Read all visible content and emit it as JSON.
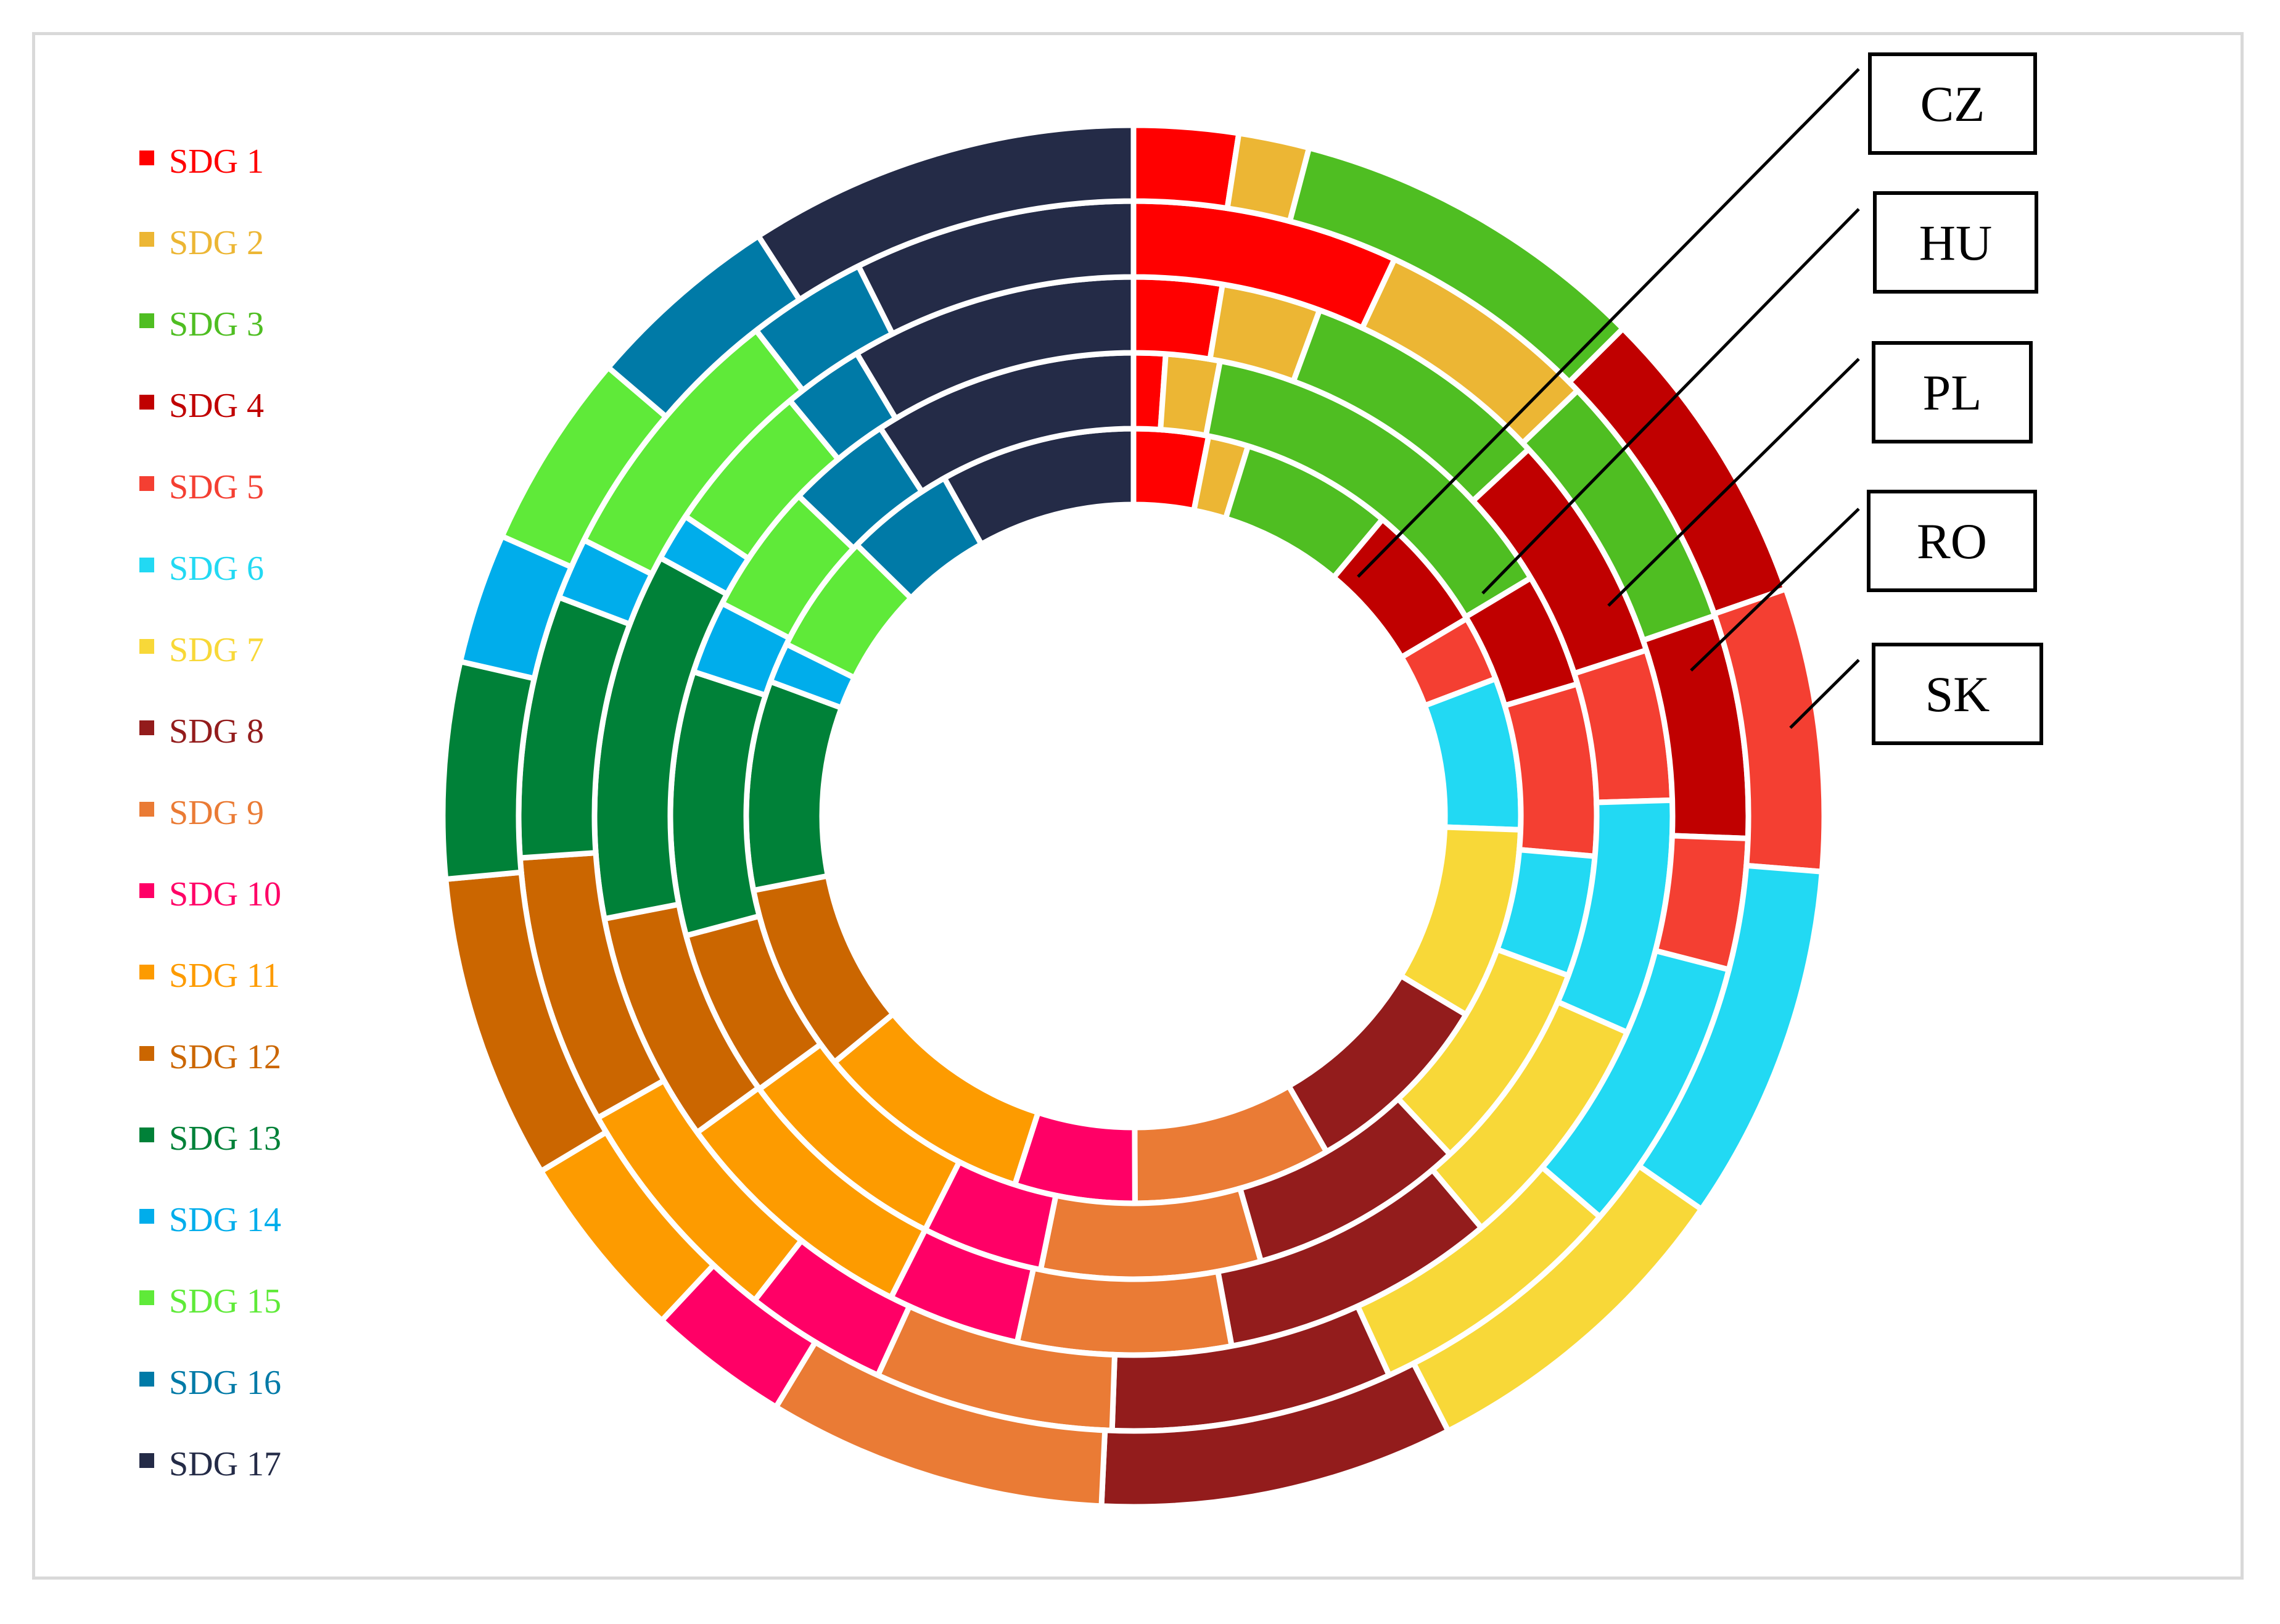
{
  "chart_data": {
    "type": "donut",
    "title": "",
    "legend_position": "left",
    "categories": [
      "SDG 1",
      "SDG 2",
      "SDG 3",
      "SDG 4",
      "SDG 5",
      "SDG 6",
      "SDG 7",
      "SDG 8",
      "SDG 9",
      "SDG 10",
      "SDG 11",
      "SDG 12",
      "SDG 13",
      "SDG 14",
      "SDG 15",
      "SDG 16",
      "SDG 17"
    ],
    "colors": [
      "#ff0000",
      "#ecb634",
      "#4fbe22",
      "#c00000",
      "#f43f32",
      "#22d9f3",
      "#f8d838",
      "#931c1c",
      "#ea7b35",
      "#ff0066",
      "#fd9b00",
      "#cb6600",
      "#008138",
      "#00adeb",
      "#5fea39",
      "#007aa7",
      "#242b47"
    ],
    "series": [
      {
        "name": "CZ",
        "values": [
          2.6,
          1.4,
          5.3,
          4.5,
          2.3,
          5.3,
          6.7,
          6.8,
          6.9,
          4.2,
          7.6,
          6.6,
          7.3,
          1.4,
          4.2,
          3.8,
          6.8
        ]
      },
      {
        "name": "HU",
        "values": [
          1.0,
          1.7,
          12.1,
          3.6,
          5.4,
          3.8,
          6.7,
          6.8,
          6.9,
          3.8,
          6.8,
          5.3,
          8.3,
          2.3,
          4.1,
          3.3,
          8.3
        ]
      },
      {
        "name": "PL",
        "values": [
          2.4,
          2.7,
          6.8,
          6.3,
          4.1,
          6.4,
          6.6,
          7.5,
          5.8,
          3.6,
          6.9,
          6.3,
          10.0,
          1.3,
          4.2,
          2.2,
          7.8
        ]
      },
      {
        "name": "RO",
        "values": [
          6.9,
          5.8,
          6.8,
          5.8,
          3.4,
          7.2,
          6.8,
          7.3,
          6.2,
          3.7,
          6.2,
          7.0,
          6.8,
          1.6,
          7.0,
          3.1,
          7.3
        ]
      },
      {
        "name": "SK",
        "values": [
          2.8,
          1.9,
          9.7,
          8.2,
          7.6,
          9.6,
          9.0,
          9.5,
          9.1,
          3.8,
          5.1,
          8.2,
          5.8,
          3.5,
          5.3,
          5.3,
          10.5
        ]
      }
    ]
  }
}
